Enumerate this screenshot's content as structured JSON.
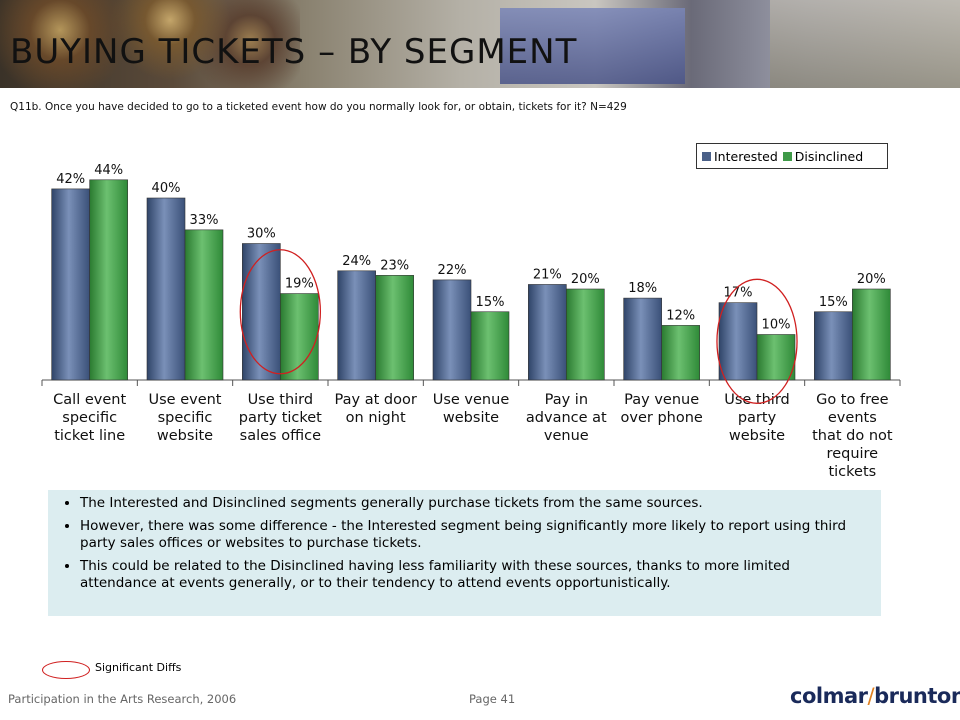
{
  "title": "BUYING TICKETS – BY SEGMENT",
  "question": "Q11b. Once you have decided to go to a ticketed event how do you normally look for, or obtain, tickets for it? N=429",
  "colors": {
    "interested": "#4a6088",
    "disinclined": "#3f9a48",
    "highlight": "#d02020",
    "bullet_bg": "#dcedf0"
  },
  "legend": {
    "interested": "Interested",
    "disinclined": "Disinclined"
  },
  "chart_data": {
    "type": "bar",
    "categories": [
      [
        "Call event",
        "specific",
        "ticket line"
      ],
      [
        "Use event",
        "specific",
        "website"
      ],
      [
        "Use third",
        "party ticket",
        "sales office"
      ],
      [
        "Pay at door",
        "on night"
      ],
      [
        "Use venue",
        "website"
      ],
      [
        "Pay in",
        "advance at",
        "venue"
      ],
      [
        "Pay venue",
        "over phone"
      ],
      [
        "Use third",
        "party",
        "website"
      ],
      [
        "Go to free",
        "events",
        "that do not",
        "require",
        "tickets"
      ]
    ],
    "series": [
      {
        "name": "Interested",
        "values": [
          42,
          40,
          30,
          24,
          22,
          21,
          18,
          17,
          15
        ]
      },
      {
        "name": "Disinclined",
        "values": [
          44,
          33,
          19,
          23,
          15,
          20,
          12,
          10,
          20
        ]
      }
    ],
    "ylim": [
      0,
      50
    ],
    "highlighted_categories": [
      2,
      7
    ],
    "legend_position": "top-right"
  },
  "bullets": [
    "The Interested and Disinclined segments generally purchase tickets from the same sources.",
    "However, there was some difference - the Interested segment being significantly more likely to report using third party sales offices or websites to purchase tickets.",
    "This could be related to the Disinclined having less familiarity with these sources, thanks to more limited attendance at events generally, or to their tendency to attend events opportunistically."
  ],
  "significance_note": "Significant Diffs",
  "footer": {
    "left": "Participation in the Arts Research, 2006",
    "page": "Page 41"
  },
  "logo": {
    "part1": "colmar",
    "part2": "brunton"
  }
}
